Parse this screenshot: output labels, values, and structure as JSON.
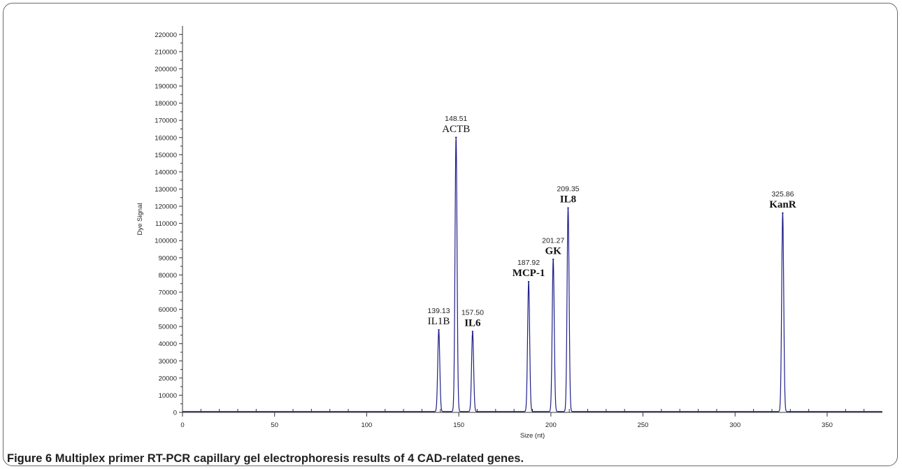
{
  "caption": {
    "label": "Figure 6",
    "text": "Multiplex primer RT-PCR capillary gel electrophoresis results of 4 CAD-related genes."
  },
  "colors": {
    "signal": "#1f1f8a",
    "axis": "#333333",
    "frame": "#6b6b6b"
  },
  "chart_data": {
    "type": "line",
    "xlabel": "Size (nt)",
    "ylabel": "Dye Signal",
    "xlim": [
      0,
      380
    ],
    "ylim": [
      0,
      225000
    ],
    "x_ticks": [
      0,
      50,
      100,
      150,
      200,
      250,
      300,
      350
    ],
    "y_ticks": [
      0,
      10000,
      20000,
      30000,
      40000,
      50000,
      60000,
      70000,
      80000,
      90000,
      100000,
      110000,
      120000,
      130000,
      140000,
      150000,
      160000,
      170000,
      180000,
      190000,
      200000,
      210000,
      220000
    ],
    "y_tick_labels": [
      "0",
      "10000",
      "20000",
      "30000",
      "40000",
      "50000",
      "60000",
      "70000",
      "80000",
      "90000",
      "100000",
      "110000",
      "120000",
      "130000",
      "140000",
      "150000",
      "160000",
      "170000",
      "180000",
      "190000",
      "200000",
      "210000",
      "220000"
    ],
    "grid": false,
    "peaks": [
      {
        "size": 139.13,
        "size_label": "139.13",
        "gene": "IL1B",
        "signal": 48000,
        "bold": false
      },
      {
        "size": 148.51,
        "size_label": "148.51",
        "gene": "ACTB",
        "signal": 160000,
        "bold": false
      },
      {
        "size": 157.5,
        "size_label": "157.50",
        "gene": "IL6",
        "signal": 47000,
        "bold": true
      },
      {
        "size": 187.92,
        "size_label": "187.92",
        "gene": "MCP-1",
        "signal": 76000,
        "bold": true
      },
      {
        "size": 201.27,
        "size_label": "201.27",
        "gene": "GK",
        "signal": 89000,
        "bold": true
      },
      {
        "size": 209.35,
        "size_label": "209.35",
        "gene": "IL8",
        "signal": 119000,
        "bold": true
      },
      {
        "size": 325.86,
        "size_label": "325.86",
        "gene": "KanR",
        "signal": 116000,
        "bold": true
      }
    ]
  }
}
